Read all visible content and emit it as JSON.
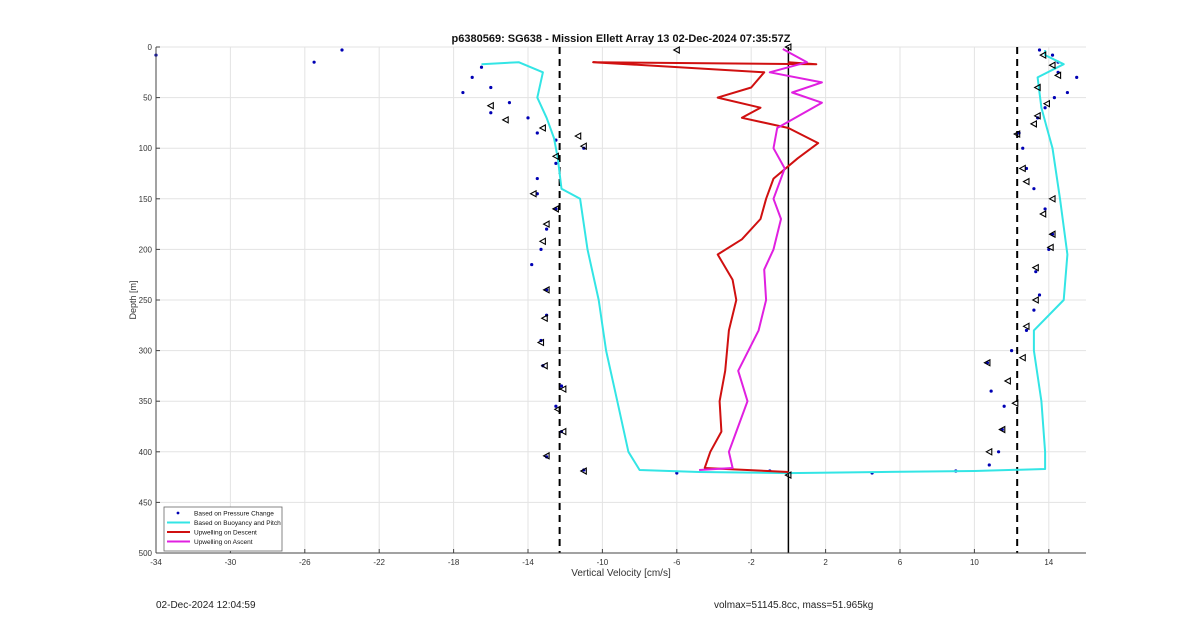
{
  "footer": {
    "timestamp": "02-Dec-2024 12:04:59",
    "info": "volmax=51145.8cc, mass=51.965kg"
  },
  "chart_data": {
    "type": "line",
    "title": "p6380569: SG638 - Mission Ellett Array 13 02-Dec-2024 07:35:57Z",
    "xlabel": "Vertical Velocity [cm/s]",
    "ylabel": "Depth [m]",
    "xlim": [
      -34,
      16
    ],
    "ylim": [
      0,
      500
    ],
    "y_reversed": true,
    "grid": true,
    "xticks": [
      -34,
      -30,
      -26,
      -22,
      -18,
      -14,
      -10,
      -6,
      -2,
      2,
      6,
      10,
      14
    ],
    "yticks": [
      0,
      50,
      100,
      150,
      200,
      250,
      300,
      350,
      400,
      450,
      500
    ],
    "legend_position": "bottom-left",
    "reference_lines": {
      "dashed_x": [
        -12.3,
        12.3
      ],
      "solid_x": [
        0
      ]
    },
    "colors": {
      "pressure": "#0000b4",
      "buoyancy": "#33e5e5",
      "descent": "#d01010",
      "ascent": "#e020e0",
      "grid": "#e3e3e3",
      "axis": "#444444"
    },
    "series": [
      {
        "name": "Based on Pressure Change",
        "style": "dots",
        "points": [
          [
            -24,
            3
          ],
          [
            -25.5,
            15
          ],
          [
            -34,
            8
          ],
          [
            -16.5,
            20
          ],
          [
            -17,
            30
          ],
          [
            -17.5,
            45
          ],
          [
            -16,
            40
          ],
          [
            -15,
            55
          ],
          [
            -16,
            65
          ],
          [
            -14,
            70
          ],
          [
            -13.5,
            85
          ],
          [
            -12.5,
            92
          ],
          [
            -11,
            100
          ],
          [
            -12.5,
            115
          ],
          [
            -13.5,
            130
          ],
          [
            -13.5,
            145
          ],
          [
            -12.5,
            160
          ],
          [
            -13,
            180
          ],
          [
            -13.3,
            200
          ],
          [
            -13.8,
            215
          ],
          [
            -13,
            240
          ],
          [
            -13,
            265
          ],
          [
            -13.3,
            290
          ],
          [
            -13.2,
            315
          ],
          [
            -12.2,
            335
          ],
          [
            -12.5,
            355
          ],
          [
            -12.2,
            380
          ],
          [
            -13,
            405
          ],
          [
            -11,
            418
          ],
          [
            -6,
            421
          ],
          [
            -1,
            419
          ],
          [
            4.5,
            421
          ],
          [
            9,
            419
          ],
          [
            10.8,
            413
          ],
          [
            11.3,
            400
          ],
          [
            11.5,
            378
          ],
          [
            11.6,
            355
          ],
          [
            10.9,
            340
          ],
          [
            10.7,
            312
          ],
          [
            12,
            300
          ],
          [
            12.8,
            280
          ],
          [
            13.2,
            260
          ],
          [
            13.5,
            245
          ],
          [
            13.3,
            222
          ],
          [
            14,
            200
          ],
          [
            14.2,
            185
          ],
          [
            13.8,
            160
          ],
          [
            13.2,
            140
          ],
          [
            12.8,
            120
          ],
          [
            12.6,
            100
          ],
          [
            12.4,
            85
          ],
          [
            13.4,
            70
          ],
          [
            13.8,
            60
          ],
          [
            14.3,
            50
          ],
          [
            15,
            45
          ],
          [
            14.5,
            25
          ],
          [
            14.2,
            8
          ],
          [
            13.5,
            3
          ],
          [
            14.5,
            15
          ],
          [
            15.5,
            30
          ]
        ]
      },
      {
        "name": "Based on Buoyancy and Pitch",
        "style": "line",
        "points": [
          [
            -16.5,
            17
          ],
          [
            -14.5,
            15
          ],
          [
            -13.2,
            25
          ],
          [
            -13.5,
            50
          ],
          [
            -13,
            70
          ],
          [
            -12.6,
            90
          ],
          [
            -12.4,
            110
          ],
          [
            -12.2,
            140
          ],
          [
            -11.2,
            150
          ],
          [
            -10.8,
            200
          ],
          [
            -10.2,
            250
          ],
          [
            -9.8,
            300
          ],
          [
            -9.2,
            350
          ],
          [
            -8.6,
            400
          ],
          [
            -8,
            418
          ],
          [
            -4.8,
            420
          ],
          [
            0,
            421
          ],
          [
            5,
            420
          ],
          [
            10,
            419
          ],
          [
            13.8,
            417
          ],
          [
            13.8,
            400
          ],
          [
            13.6,
            350
          ],
          [
            13.2,
            300
          ],
          [
            13.2,
            280
          ],
          [
            14.8,
            250
          ],
          [
            15,
            205
          ],
          [
            14.6,
            150
          ],
          [
            14.2,
            100
          ],
          [
            13.9,
            80
          ],
          [
            13.6,
            60
          ],
          [
            13.4,
            30
          ],
          [
            14.8,
            17
          ],
          [
            13.8,
            8
          ],
          [
            13.8,
            3
          ]
        ]
      },
      {
        "name": "Upwelling on Descent",
        "style": "line",
        "points": [
          [
            0,
            420
          ],
          [
            -4.5,
            416
          ],
          [
            -4.2,
            400
          ],
          [
            -3.6,
            380
          ],
          [
            -3.7,
            350
          ],
          [
            -3.4,
            320
          ],
          [
            -3.2,
            280
          ],
          [
            -2.8,
            250
          ],
          [
            -3,
            230
          ],
          [
            -3.8,
            205
          ],
          [
            -2.5,
            190
          ],
          [
            -1.5,
            170
          ],
          [
            -1.2,
            150
          ],
          [
            -0.8,
            130
          ],
          [
            0.5,
            110
          ],
          [
            1.6,
            95
          ],
          [
            0,
            80
          ],
          [
            -2.5,
            70
          ],
          [
            -1.5,
            60
          ],
          [
            -3.8,
            50
          ],
          [
            -2,
            40
          ],
          [
            -1.3,
            25
          ],
          [
            -10.5,
            15
          ],
          [
            1.5,
            17
          ],
          [
            0,
            15
          ]
        ]
      },
      {
        "name": "Upwelling on Ascent",
        "style": "line",
        "points": [
          [
            -4.8,
            418
          ],
          [
            -3,
            416
          ],
          [
            -3.2,
            400
          ],
          [
            -2.8,
            380
          ],
          [
            -2.2,
            350
          ],
          [
            -2.7,
            320
          ],
          [
            -1.6,
            280
          ],
          [
            -1.2,
            250
          ],
          [
            -1.3,
            220
          ],
          [
            -0.8,
            200
          ],
          [
            -0.4,
            170
          ],
          [
            -0.8,
            150
          ],
          [
            -0.2,
            120
          ],
          [
            -0.8,
            100
          ],
          [
            -0.6,
            80
          ],
          [
            1.8,
            55
          ],
          [
            0.2,
            45
          ],
          [
            1.8,
            35
          ],
          [
            -1,
            25
          ],
          [
            1,
            15
          ],
          [
            0,
            5
          ],
          [
            -0.3,
            2
          ]
        ]
      }
    ],
    "markers": {
      "style": "triangle",
      "points": [
        [
          -6,
          3
        ],
        [
          0,
          0
        ],
        [
          -16,
          58
        ],
        [
          -15.2,
          72
        ],
        [
          -13.2,
          80
        ],
        [
          -11.3,
          88
        ],
        [
          -11,
          98
        ],
        [
          -12.5,
          108
        ],
        [
          -13.7,
          145
        ],
        [
          -12.5,
          160
        ],
        [
          -13,
          175
        ],
        [
          -13.2,
          192
        ],
        [
          -13,
          240
        ],
        [
          -13.1,
          268
        ],
        [
          -13.3,
          292
        ],
        [
          -13.1,
          315
        ],
        [
          -12.1,
          338
        ],
        [
          -12.4,
          358
        ],
        [
          -12.1,
          380
        ],
        [
          -13,
          404
        ],
        [
          -11,
          419
        ],
        [
          0,
          423
        ],
        [
          10.8,
          400
        ],
        [
          11.5,
          378
        ],
        [
          12.2,
          352
        ],
        [
          11.8,
          330
        ],
        [
          12.6,
          307
        ],
        [
          10.7,
          312
        ],
        [
          12.8,
          276
        ],
        [
          13.3,
          250
        ],
        [
          13.3,
          218
        ],
        [
          14.1,
          198
        ],
        [
          14.2,
          185
        ],
        [
          13.7,
          165
        ],
        [
          14.2,
          150
        ],
        [
          12.8,
          133
        ],
        [
          12.6,
          120
        ],
        [
          12.3,
          86
        ],
        [
          13.2,
          76
        ],
        [
          13.4,
          68
        ],
        [
          13.9,
          56
        ],
        [
          13.4,
          40
        ],
        [
          14.5,
          28
        ],
        [
          14.2,
          18
        ],
        [
          13.7,
          8
        ]
      ]
    }
  }
}
